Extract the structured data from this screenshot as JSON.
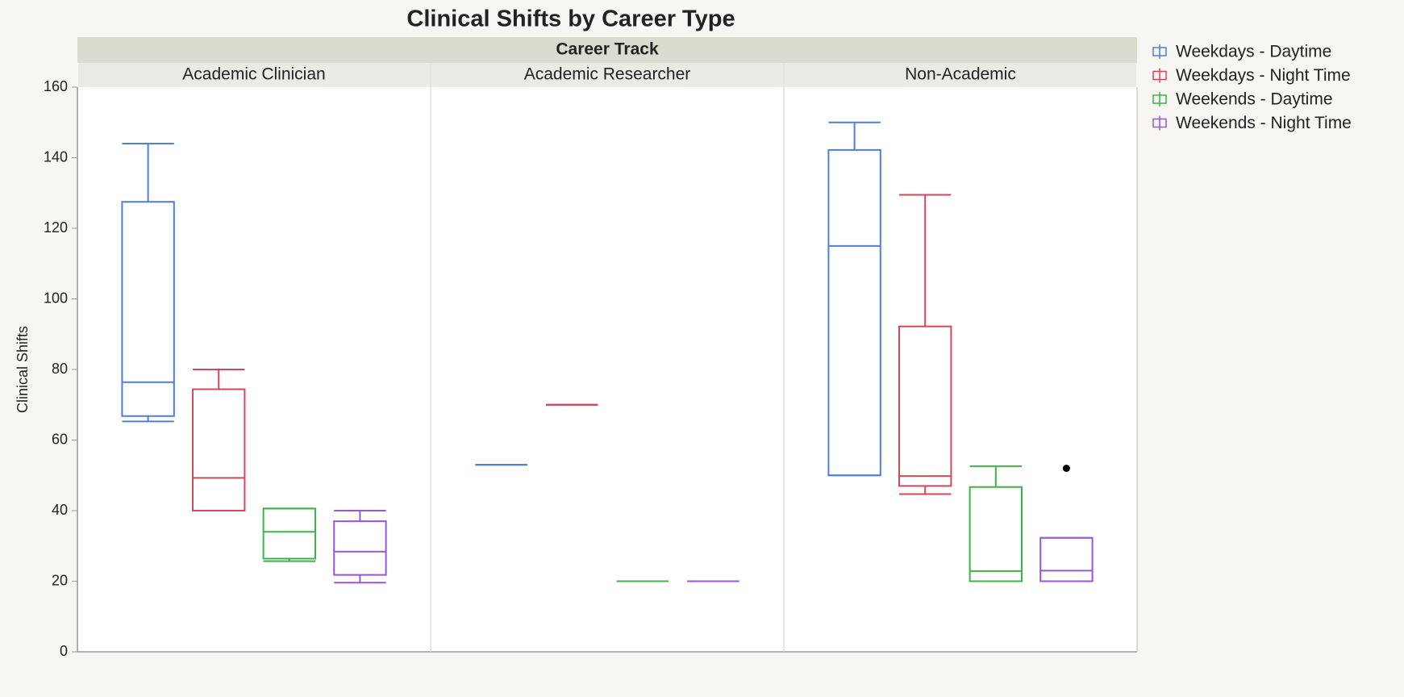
{
  "chart_data": {
    "type": "box",
    "title": "Clinical Shifts by Career Type",
    "facet_title": "Career Track",
    "categories": [
      "Academic Clinician",
      "Academic Researcher",
      "Non-Academic"
    ],
    "ylabel": "Clinical Shifts",
    "ylim": [
      0,
      160
    ],
    "yticks": [
      0,
      20,
      40,
      60,
      80,
      100,
      120,
      140,
      160
    ],
    "legend": "right",
    "series": [
      {
        "name": "Weekdays - Daytime",
        "color": "#4f7fd9",
        "values": [
          {
            "min": 65.3,
            "q1": 66.8,
            "median": 76.4,
            "q3": 127.5,
            "max": 144,
            "outliers": []
          },
          {
            "min": 53,
            "q1": 53,
            "median": 53,
            "q3": 53,
            "max": 53,
            "outliers": []
          },
          {
            "min": 50,
            "q1": 50,
            "median": 115,
            "q3": 142.2,
            "max": 150,
            "outliers": []
          }
        ]
      },
      {
        "name": "Weekdays - Night Time",
        "color": "#d04a5c",
        "values": [
          {
            "min": 40,
            "q1": 40,
            "median": 49.3,
            "q3": 74.4,
            "max": 80,
            "outliers": []
          },
          {
            "min": 70,
            "q1": 70,
            "median": 70,
            "q3": 70,
            "max": 70,
            "outliers": []
          },
          {
            "min": 44.7,
            "q1": 47,
            "median": 49.8,
            "q3": 92.2,
            "max": 129.5,
            "outliers": []
          }
        ]
      },
      {
        "name": "Weekends - Daytime",
        "color": "#3db34a",
        "values": [
          {
            "min": 25.7,
            "q1": 26.4,
            "median": 34,
            "q3": 40.6,
            "max": 40.6,
            "outliers": []
          },
          {
            "min": 20,
            "q1": 20,
            "median": 20,
            "q3": 20,
            "max": 20,
            "outliers": []
          },
          {
            "min": 20,
            "q1": 20,
            "median": 22.9,
            "q3": 46.7,
            "max": 52.6,
            "outliers": []
          }
        ]
      },
      {
        "name": "Weekends - Night Time",
        "color": "#9a55d8",
        "values": [
          {
            "min": 19.6,
            "q1": 21.8,
            "median": 28.4,
            "q3": 37,
            "max": 40,
            "outliers": []
          },
          {
            "min": 20,
            "q1": 20,
            "median": 20,
            "q3": 20,
            "max": 20,
            "outliers": []
          },
          {
            "min": 20,
            "q1": 20,
            "median": 23,
            "q3": 32.3,
            "max": 32.3,
            "outliers": [
              52
            ]
          }
        ]
      }
    ]
  }
}
